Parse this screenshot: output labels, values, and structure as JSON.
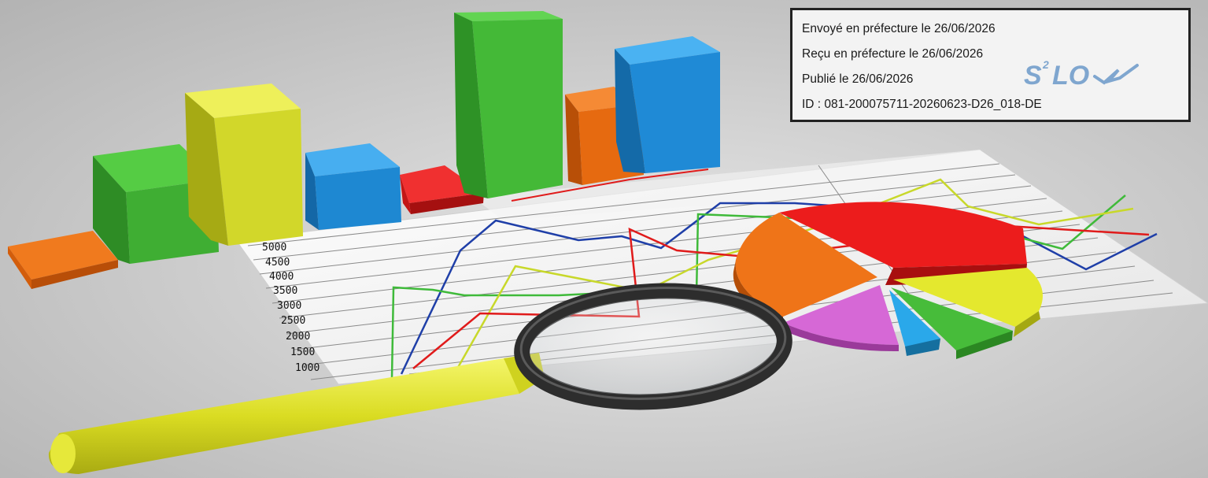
{
  "stamp": {
    "sent": "Envoyé en préfecture le 26/06/2026",
    "received": "Reçu en préfecture le 26/06/2026",
    "published": "Publié le 26/06/2026",
    "id": "ID : 081-200075711-20260623-D26_018-DE",
    "logo_text": "S²LO"
  },
  "y_axis_labels": [
    "5000",
    "4500",
    "4000",
    "3500",
    "3000",
    "2500",
    "2000",
    "1500",
    "1000"
  ],
  "colors": {
    "green": "#3fba3a",
    "yellow": "#d7e02a",
    "blue": "#1f8fd8",
    "red": "#e01b1b",
    "orange": "#ea6d12",
    "magenta": "#d05ad0",
    "line_blue": "#1f3fa8",
    "lens_frame": "#3a3a3a",
    "handle": "#e3e52b"
  }
}
